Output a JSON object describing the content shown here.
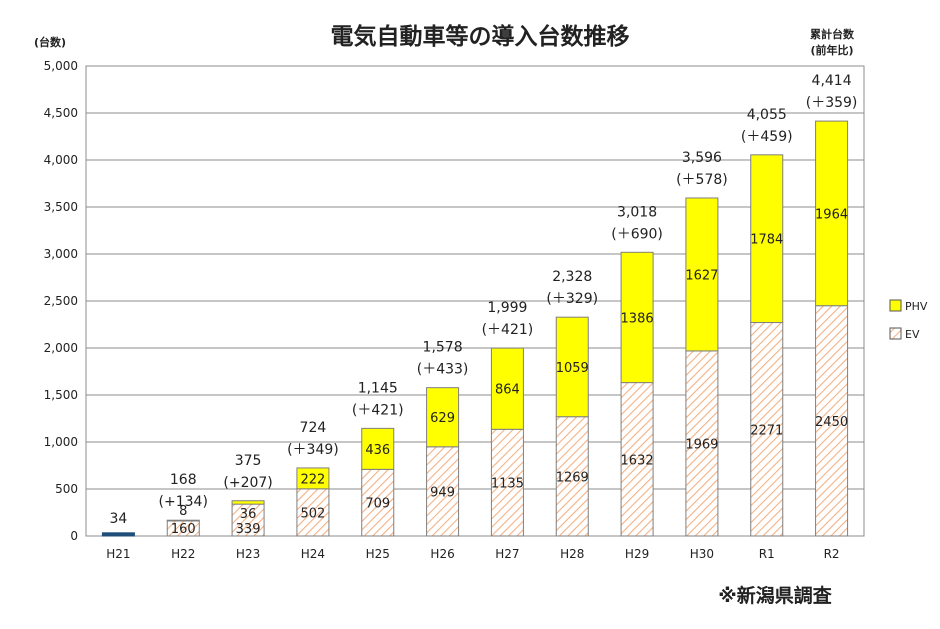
{
  "chart_data": {
    "type": "bar",
    "stacked": true,
    "title": "電気自動車等の導入台数推移",
    "ylabel": "(台数)",
    "corner_label_line1": "累計台数",
    "corner_label_line2": "(前年比)",
    "source_note": "※新潟県調査",
    "ylim": [
      0,
      5000
    ],
    "yticks": [
      "0",
      "500",
      "1,000",
      "1,500",
      "2,000",
      "2,500",
      "3,000",
      "3,500",
      "4,000",
      "4,500",
      "5,000"
    ],
    "grid": true,
    "legend_position": "right",
    "categories": [
      "H21",
      "H22",
      "H23",
      "H24",
      "H25",
      "H26",
      "H27",
      "H28",
      "H29",
      "H30",
      "R1",
      "R2"
    ],
    "series": [
      {
        "name": "EV",
        "color": "#f4b183",
        "pattern": "diagonal-hatch",
        "values": [
          34,
          160,
          339,
          502,
          709,
          949,
          1135,
          1269,
          1632,
          1969,
          2271,
          2450
        ],
        "labels": [
          "",
          "160",
          "339",
          "502",
          "709",
          "949",
          "1135",
          "1269",
          "1632",
          "1969",
          "2271",
          "2450"
        ]
      },
      {
        "name": "PHV",
        "color": "#ffff00",
        "pattern": "solid",
        "values": [
          0,
          8,
          36,
          222,
          436,
          629,
          864,
          1059,
          1386,
          1627,
          1784,
          1964
        ],
        "labels": [
          "",
          "8",
          "36",
          "222",
          "436",
          "629",
          "864",
          "1059",
          "1386",
          "1627",
          "1784",
          "1964"
        ]
      }
    ],
    "totals": [
      "34",
      "168",
      "375",
      "724",
      "1,145",
      "1,578",
      "1,999",
      "2,328",
      "3,018",
      "3,596",
      "4,055",
      "4,414"
    ],
    "changes": [
      "",
      "(+134)",
      "(+207)",
      "(＋349)",
      "(＋421)",
      "(＋433)",
      "(＋421)",
      "(＋329)",
      "(＋690)",
      "(＋578)",
      "(＋459)",
      "(＋359)"
    ]
  }
}
